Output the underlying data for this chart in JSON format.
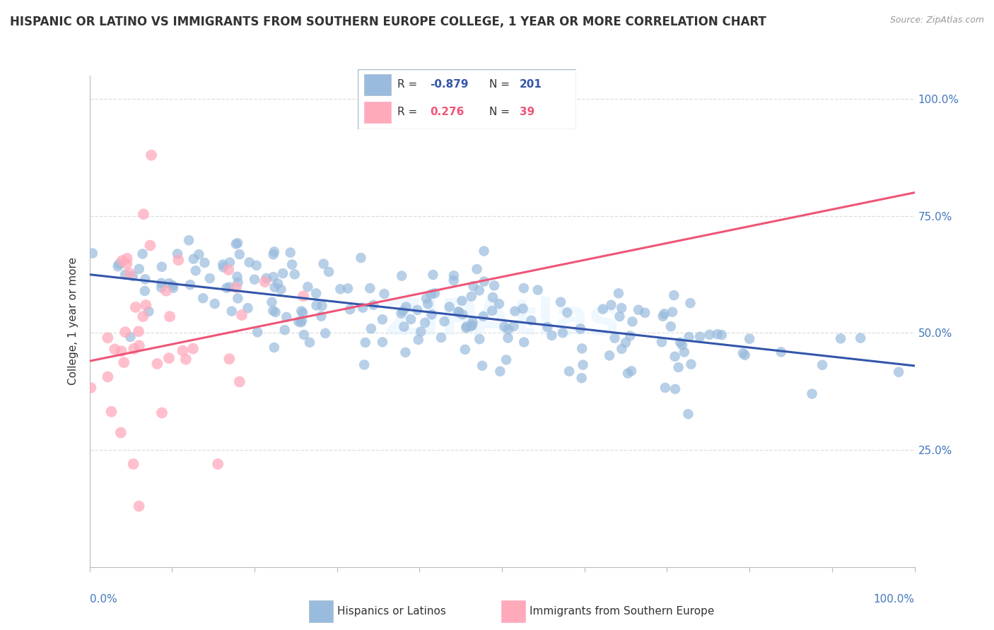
{
  "title": "HISPANIC OR LATINO VS IMMIGRANTS FROM SOUTHERN EUROPE COLLEGE, 1 YEAR OR MORE CORRELATION CHART",
  "source_text": "Source: ZipAtlas.com",
  "ylabel": "College, 1 year or more",
  "xlim": [
    0.0,
    1.0
  ],
  "ylim": [
    0.0,
    1.0
  ],
  "blue_R": -0.879,
  "blue_N": 201,
  "pink_R": 0.276,
  "pink_N": 39,
  "blue_color": "#99BBDD",
  "pink_color": "#FFAABB",
  "blue_line_color": "#3355AA",
  "pink_line_color": "#EE5577",
  "legend_label_blue": "Hispanics or Latinos",
  "legend_label_pink": "Immigrants from Southern Europe",
  "ytick_labels": [
    "100.0%",
    "75.0%",
    "50.0%",
    "25.0%"
  ],
  "ytick_positions": [
    1.0,
    0.75,
    0.5,
    0.25
  ],
  "background_color": "#FFFFFF",
  "grid_color": "#DDDDDD",
  "blue_line_intercept": 0.625,
  "blue_line_slope": -0.195,
  "pink_line_intercept": 0.44,
  "pink_line_slope": 0.36
}
